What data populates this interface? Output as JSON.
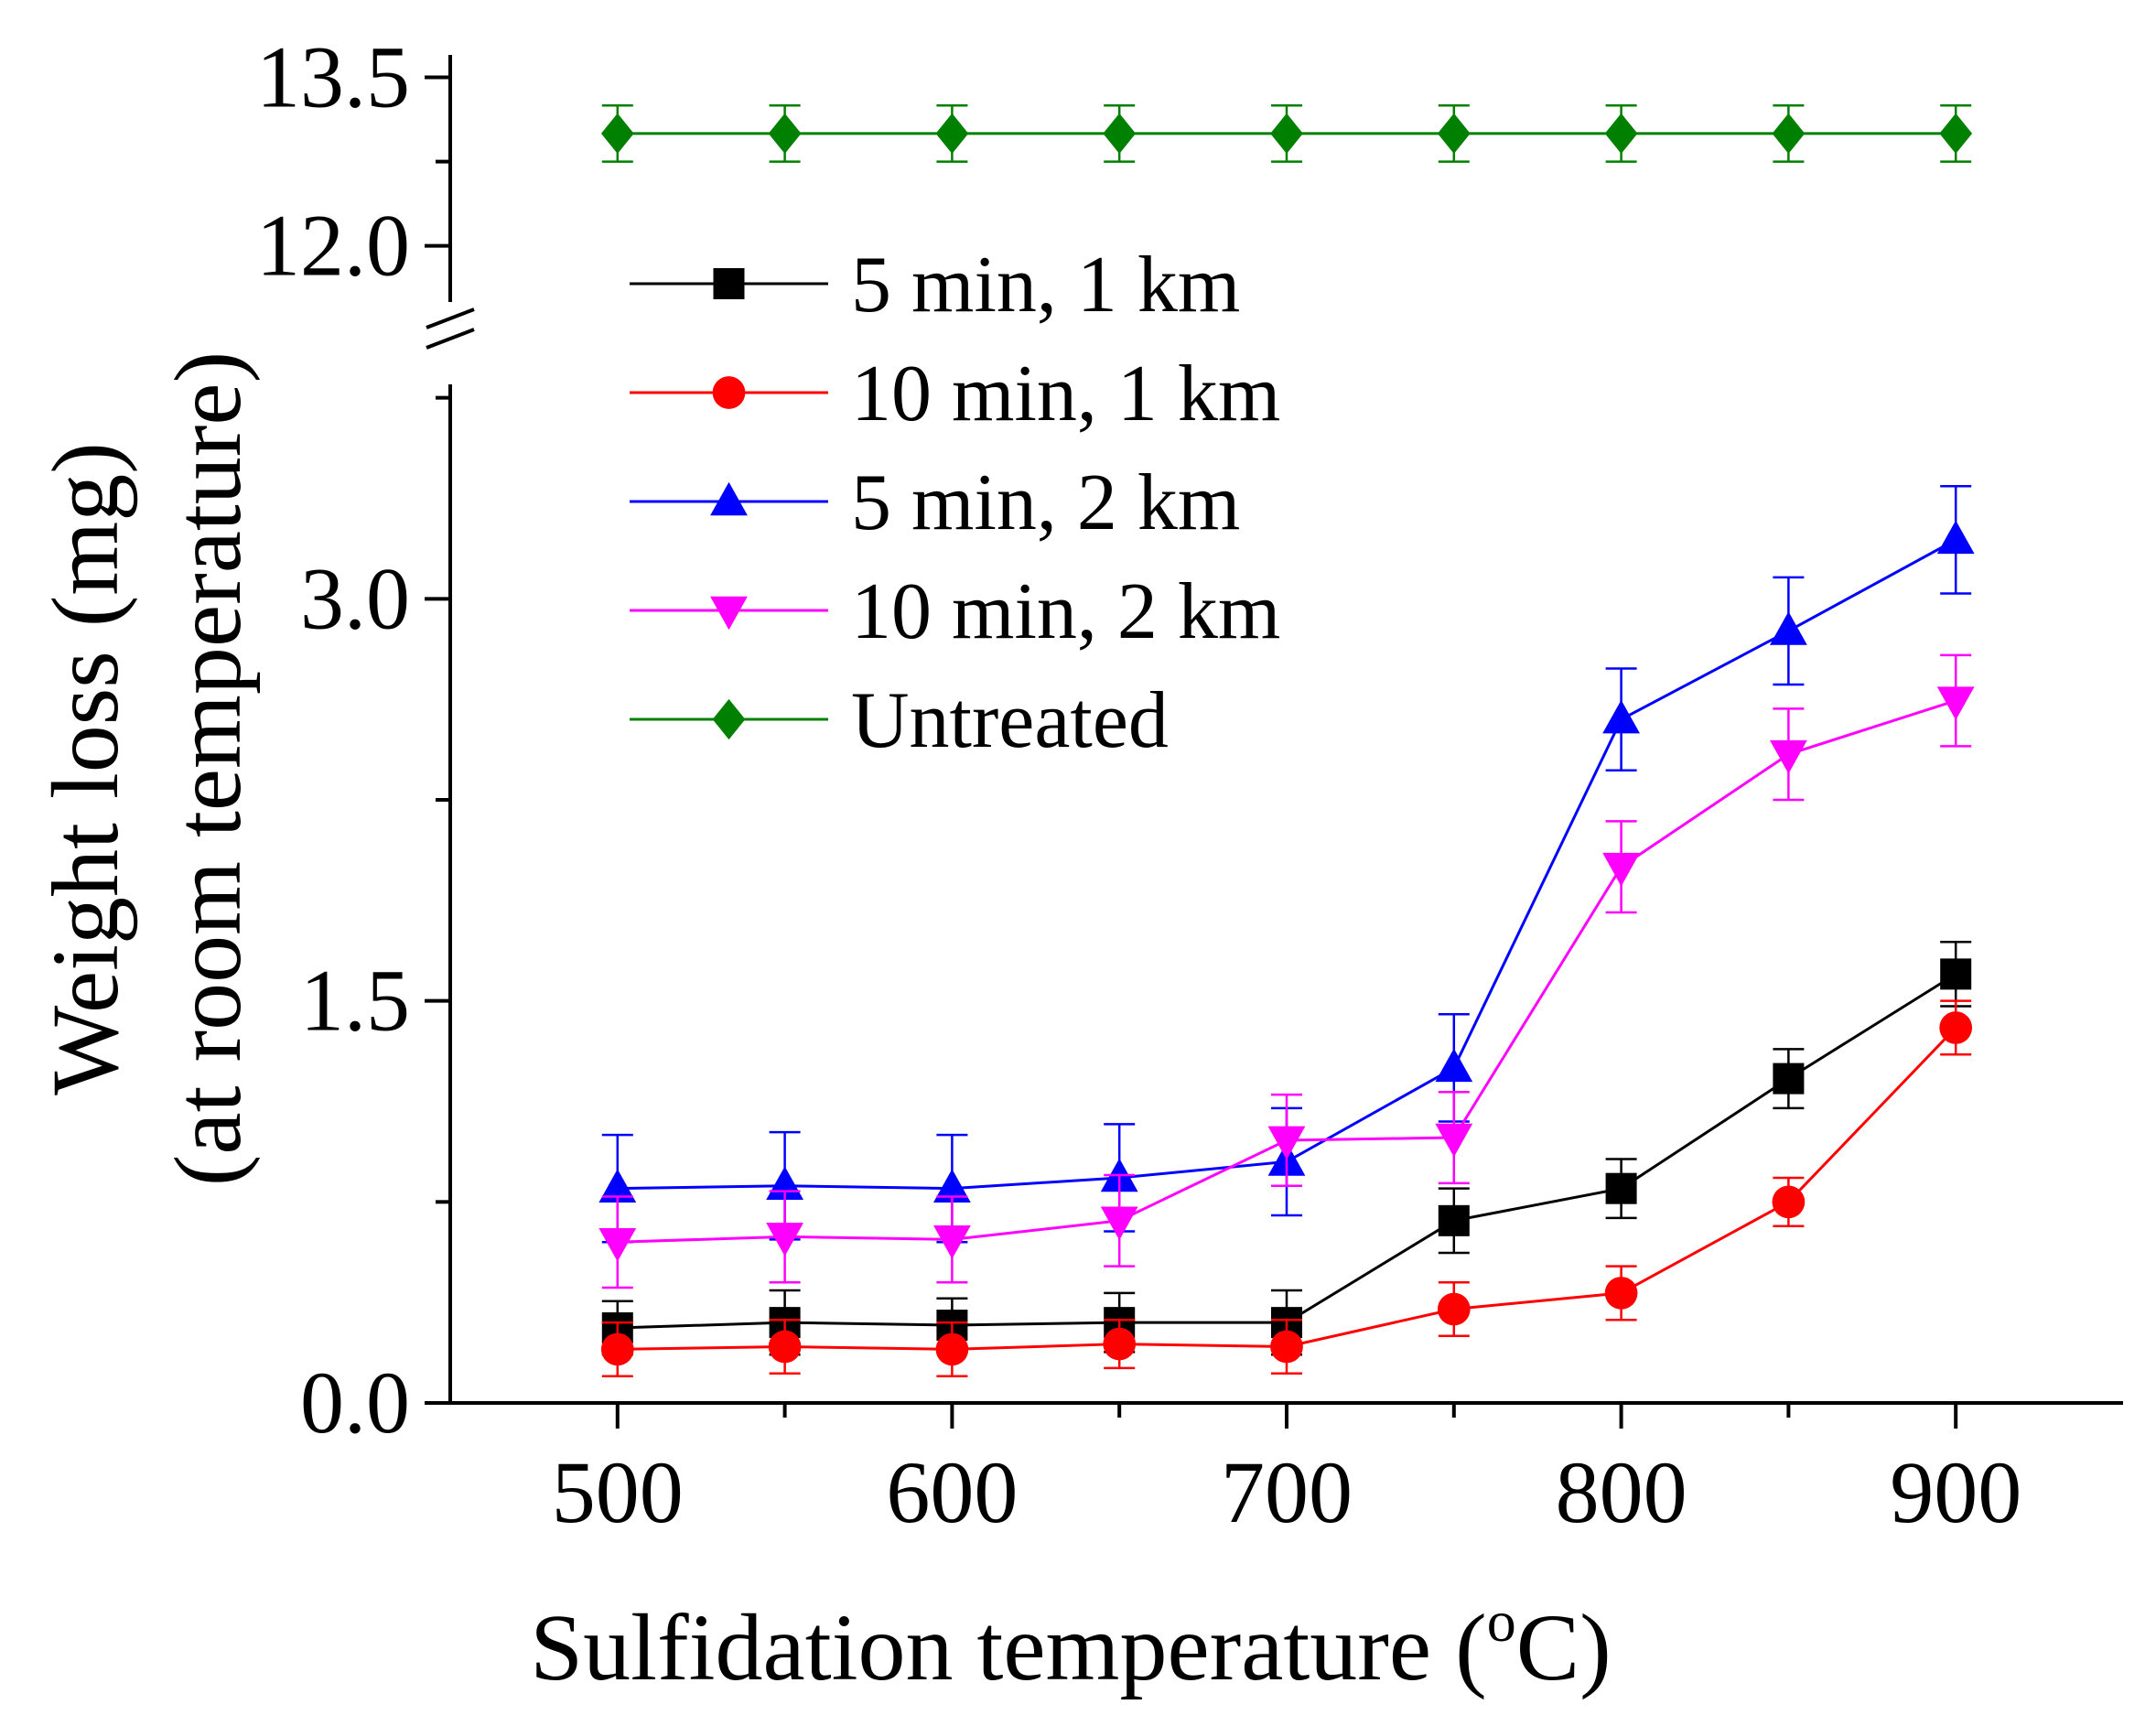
{
  "chart_data": {
    "type": "line",
    "x": [
      500,
      550,
      600,
      650,
      700,
      750,
      800,
      850,
      900
    ],
    "xlabel_main": "Sulfidation temperature (",
    "xlabel_sup": "o",
    "xlabel_end": "C)",
    "ylabel_line1": "Weight loss (mg)",
    "ylabel_line2": "(at room temperature)",
    "xlim": [
      450,
      950
    ],
    "x_ticks": [
      500,
      600,
      700,
      800,
      900
    ],
    "x_tick_labels": [
      "500",
      "600",
      "700",
      "800",
      "900"
    ],
    "ylim_lower": [
      0,
      3.8
    ],
    "ylim_upper": [
      11.5,
      13.7
    ],
    "y_ticks_lower": [
      0,
      1.5,
      3.0
    ],
    "y_tick_labels_lower": [
      "0.0",
      "1.5",
      "3.0"
    ],
    "y_ticks_upper": [
      12.0,
      13.5
    ],
    "y_tick_labels_upper": [
      "12.0",
      "13.5"
    ],
    "axis_break": true,
    "legend_position": "upper-left",
    "series": [
      {
        "name": "5 min, 1 km",
        "color": "#000000",
        "marker": "square",
        "values": [
          0.28,
          0.3,
          0.29,
          0.3,
          0.3,
          0.68,
          0.8,
          1.21,
          1.6
        ],
        "errors": [
          0.1,
          0.12,
          0.1,
          0.11,
          0.12,
          0.12,
          0.11,
          0.11,
          0.12
        ]
      },
      {
        "name": "10 min, 1 km",
        "color": "#ff0000",
        "marker": "circle",
        "values": [
          0.2,
          0.21,
          0.2,
          0.22,
          0.21,
          0.35,
          0.41,
          0.75,
          1.4
        ],
        "errors": [
          0.1,
          0.1,
          0.1,
          0.09,
          0.1,
          0.1,
          0.1,
          0.09,
          0.1
        ]
      },
      {
        "name": "5 min, 2 km",
        "color": "#0000ff",
        "marker": "triangle-up",
        "values": [
          0.8,
          0.81,
          0.8,
          0.84,
          0.9,
          1.25,
          2.55,
          2.88,
          3.22
        ],
        "errors": [
          0.2,
          0.2,
          0.2,
          0.2,
          0.2,
          0.2,
          0.19,
          0.2,
          0.2
        ]
      },
      {
        "name": "10 min, 2 km",
        "color": "#ff00ff",
        "marker": "triangle-down",
        "values": [
          0.6,
          0.62,
          0.61,
          0.68,
          0.98,
          0.99,
          2.0,
          2.42,
          2.62
        ],
        "errors": [
          0.17,
          0.17,
          0.16,
          0.17,
          0.17,
          0.17,
          0.17,
          0.17,
          0.17
        ]
      },
      {
        "name": "Untreated",
        "color": "#008000",
        "marker": "diamond",
        "values": [
          13.0,
          13.0,
          13.0,
          13.0,
          13.0,
          13.0,
          13.0,
          13.0,
          13.0
        ],
        "errors": [
          0.25,
          0.25,
          0.25,
          0.25,
          0.25,
          0.25,
          0.25,
          0.25,
          0.25
        ],
        "segment": "upper"
      }
    ]
  }
}
